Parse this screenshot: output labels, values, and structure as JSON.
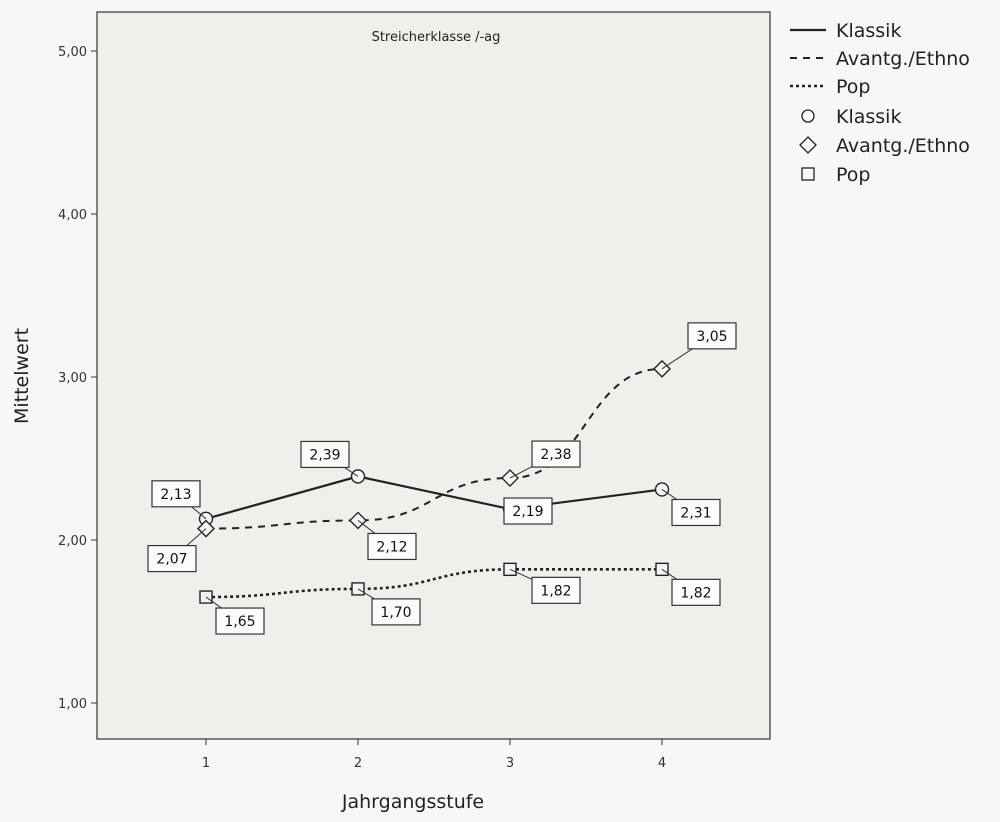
{
  "chart_data": {
    "type": "line",
    "title": "Streicherklasse /-ag",
    "xlabel": "Jahrgangsstufe",
    "ylabel": "Mittelwert",
    "x": [
      1,
      2,
      3,
      4
    ],
    "x_tick_labels": [
      "1",
      "2",
      "3",
      "4"
    ],
    "ylim": [
      0.7,
      5.2
    ],
    "y_ticks": [
      1,
      2,
      3,
      4,
      5
    ],
    "y_tick_labels": [
      "1,00",
      "2,00",
      "3,00",
      "4,00",
      "5,00"
    ],
    "grid": false,
    "legend_position": "outside-top-right",
    "series": [
      {
        "name": "Klassik",
        "values": [
          2.13,
          2.39,
          2.19,
          2.31
        ],
        "value_labels": [
          "2,13",
          "2,39",
          "2,19",
          "2,31"
        ],
        "line_style": "solid",
        "marker": "circle"
      },
      {
        "name": "Avantg./Ethno",
        "values": [
          2.07,
          2.12,
          2.38,
          3.05
        ],
        "value_labels": [
          "2,07",
          "2,12",
          "2,38",
          "3,05"
        ],
        "line_style": "dashed",
        "marker": "diamond"
      },
      {
        "name": "Pop",
        "values": [
          1.65,
          1.7,
          1.82,
          1.82
        ],
        "value_labels": [
          "1,65",
          "1,70",
          "1,82",
          "1,82"
        ],
        "line_style": "dotted",
        "marker": "square"
      }
    ],
    "legend": {
      "line_entries": [
        "Klassik",
        "Avantg./Ethno",
        "Pop"
      ],
      "marker_entries": [
        "Klassik",
        "Avantg./Ethno",
        "Pop"
      ]
    }
  }
}
